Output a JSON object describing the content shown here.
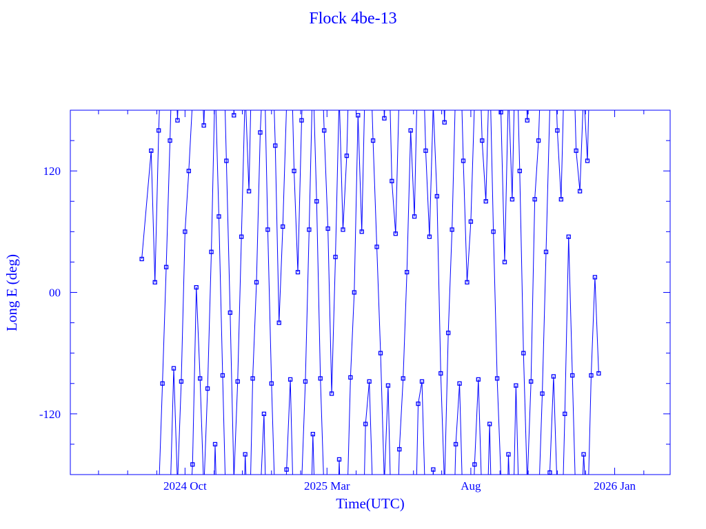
{
  "chart_data": {
    "type": "scatter",
    "title": "Flock 4be-13",
    "xlabel": "Time(UTC)",
    "ylabel": "Long E (deg)",
    "xlim": [
      "2024-06-01",
      "2026-03-01"
    ],
    "ylim": [
      -180,
      180
    ],
    "x_ticks": [
      {
        "date": "2024-10-01",
        "label": "2024 Oct"
      },
      {
        "date": "2025-03-01",
        "label": "2025 Mar"
      },
      {
        "date": "2025-08-01",
        "label": "Aug"
      },
      {
        "date": "2026-01-01",
        "label": "2026 Jan"
      }
    ],
    "y_ticks": [
      {
        "value": 120,
        "label": "120"
      },
      {
        "value": 0,
        "label": "00"
      },
      {
        "value": -120,
        "label": "-120"
      }
    ],
    "color": "#0000ff",
    "marker": "open-square",
    "connected": true,
    "grid": false,
    "x": [
      "2024-08-16",
      "2024-08-26",
      "2024-08-30",
      "2024-09-03",
      "2024-09-07",
      "2024-09-11",
      "2024-09-15",
      "2024-09-19",
      "2024-09-23",
      "2024-09-27",
      "2024-10-01",
      "2024-10-05",
      "2024-10-09",
      "2024-10-13",
      "2024-10-17",
      "2024-10-21",
      "2024-10-25",
      "2024-10-29",
      "2024-11-02",
      "2024-11-06",
      "2024-11-10",
      "2024-11-14",
      "2024-11-18",
      "2024-11-22",
      "2024-11-26",
      "2024-11-30",
      "2024-12-04",
      "2024-12-08",
      "2024-12-12",
      "2024-12-16",
      "2024-12-20",
      "2024-12-24",
      "2024-12-28",
      "2025-01-01",
      "2025-01-05",
      "2025-01-09",
      "2025-01-13",
      "2025-01-17",
      "2025-01-21",
      "2025-01-25",
      "2025-01-29",
      "2025-02-02",
      "2025-02-06",
      "2025-02-10",
      "2025-02-14",
      "2025-02-18",
      "2025-02-22",
      "2025-02-26",
      "2025-03-02",
      "2025-03-06",
      "2025-03-10",
      "2025-03-14",
      "2025-03-18",
      "2025-03-22",
      "2025-03-26",
      "2025-03-30",
      "2025-04-03",
      "2025-04-07",
      "2025-04-11",
      "2025-04-15",
      "2025-04-19",
      "2025-04-23",
      "2025-04-27",
      "2025-05-01",
      "2025-05-05",
      "2025-05-09",
      "2025-05-13",
      "2025-05-17",
      "2025-05-21",
      "2025-05-25",
      "2025-05-29",
      "2025-06-02",
      "2025-06-06",
      "2025-06-10",
      "2025-06-14",
      "2025-06-18",
      "2025-06-22",
      "2025-06-26",
      "2025-06-30",
      "2025-07-04",
      "2025-07-08",
      "2025-07-12",
      "2025-07-16",
      "2025-07-20",
      "2025-07-24",
      "2025-07-28",
      "2025-08-01",
      "2025-08-05",
      "2025-08-09",
      "2025-08-13",
      "2025-08-17",
      "2025-08-21",
      "2025-08-25",
      "2025-08-29",
      "2025-09-02",
      "2025-09-06",
      "2025-09-10",
      "2025-09-14",
      "2025-09-18",
      "2025-09-22",
      "2025-09-26",
      "2025-09-30",
      "2025-10-04",
      "2025-10-08",
      "2025-10-12",
      "2025-10-16",
      "2025-10-20",
      "2025-10-24",
      "2025-10-28",
      "2025-11-01",
      "2025-11-05",
      "2025-11-09",
      "2025-11-13",
      "2025-11-17",
      "2025-11-21",
      "2025-11-25",
      "2025-11-29",
      "2025-12-03",
      "2025-12-07",
      "2025-12-11",
      "2025-12-15"
    ],
    "y": [
      33,
      140,
      10,
      160,
      -90,
      25,
      150,
      -75,
      170,
      -88,
      60,
      120,
      -170,
      5,
      -85,
      165,
      -95,
      40,
      -150,
      75,
      -82,
      130,
      -20,
      175,
      -88,
      55,
      -160,
      100,
      -85,
      10,
      158,
      -120,
      62,
      -90,
      145,
      -30,
      65,
      -175,
      -86,
      120,
      20,
      170,
      -88,
      62,
      -140,
      90,
      -85,
      160,
      63,
      -100,
      35,
      -165,
      62,
      135,
      -84,
      0,
      175,
      60,
      -130,
      -88,
      150,
      45,
      -60,
      172,
      -92,
      110,
      58,
      -155,
      -85,
      20,
      160,
      75,
      -110,
      -88,
      140,
      55,
      -175,
      95,
      -80,
      168,
      -40,
      62,
      -150,
      -90,
      130,
      10,
      70,
      -170,
      -86,
      150,
      90,
      -130,
      60,
      -85,
      178,
      30,
      -160,
      92,
      -92,
      120,
      -60,
      170,
      -88,
      92,
      150,
      -100,
      40,
      -178,
      -83,
      160,
      92,
      -120,
      55,
      -82,
      140,
      100,
      -160,
      130,
      -82,
      15,
      -80
    ]
  }
}
